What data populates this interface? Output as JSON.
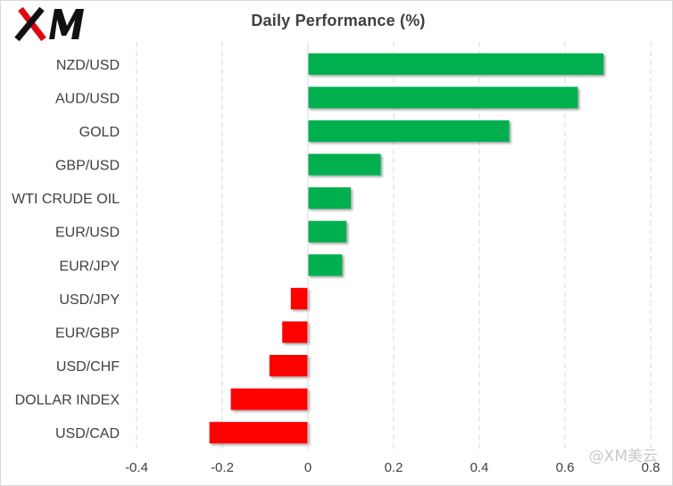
{
  "brand": {
    "logo_text": "XM",
    "accent": "#e30613"
  },
  "watermark": "@XM美云",
  "chart_data": {
    "type": "bar",
    "orientation": "horizontal",
    "title": "Daily Performance  (%)",
    "xlabel": "",
    "ylabel": "",
    "xlim": [
      -0.4,
      0.8
    ],
    "x_ticks": [
      -0.4,
      -0.2,
      0,
      0.2,
      0.4,
      0.6,
      0.8
    ],
    "x_tick_labels": [
      "-0.4",
      "-0.2",
      "0",
      "0.2",
      "0.4",
      "0.6",
      "0.8"
    ],
    "grid": "vertical dashed",
    "categories": [
      "NZD/USD",
      "AUD/USD",
      "GOLD",
      "GBP/USD",
      "WTI CRUDE OIL",
      "EUR/USD",
      "EUR/JPY",
      "USD/JPY",
      "EUR/GBP",
      "USD/CHF",
      "DOLLAR INDEX",
      "USD/CAD"
    ],
    "values": [
      0.69,
      0.63,
      0.47,
      0.17,
      0.1,
      0.09,
      0.08,
      -0.04,
      -0.06,
      -0.09,
      -0.18,
      -0.23
    ],
    "colors": {
      "positive": "#00b050",
      "negative": "#ff0000"
    }
  }
}
